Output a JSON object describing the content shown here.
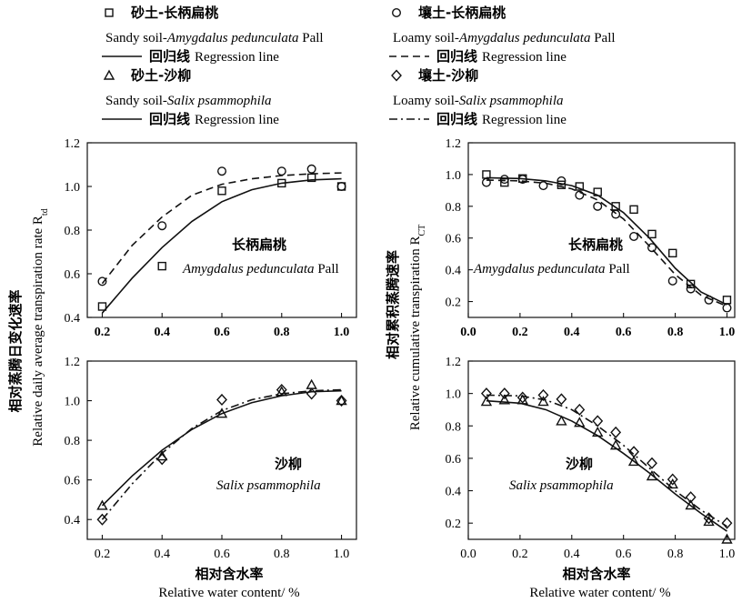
{
  "legend": {
    "items": [
      {
        "marker": "square",
        "cn": "砂土-长柄扁桃",
        "en_prefix": "Sandy soil-",
        "en_species": "Amygdalus pedunculata",
        "en_suffix": " Pall",
        "line": "solid",
        "line_cn": "回归线",
        "line_en": "Regression line"
      },
      {
        "marker": "circle",
        "cn": "壤土-长柄扁桃",
        "en_prefix": "Loamy soil-",
        "en_species": "Amygdalus pedunculata",
        "en_suffix": " Pall",
        "line": "dashed",
        "line_cn": "回归线",
        "line_en": "Regression line"
      },
      {
        "marker": "triangle",
        "cn": "砂土-沙柳",
        "en_prefix": "Sandy soil-",
        "en_species": "Salix psammophila",
        "en_suffix": "",
        "line": "solid",
        "line_cn": "回归线",
        "line_en": "Regression line"
      },
      {
        "marker": "diamond",
        "cn": "壤土-沙柳",
        "en_prefix": "Loamy soil-",
        "en_species": "Salix psammophila",
        "en_suffix": "",
        "line": "dashdot",
        "line_cn": "回归线",
        "line_en": "Regression line"
      }
    ]
  },
  "axes_text": {
    "left_ylabel_cn": "相对蒸腾日变化速率",
    "left_ylabel_en": "Relative daily average transpiration rate R",
    "left_ylabel_sub": "td",
    "right_ylabel_cn": "相对累积蒸腾速率",
    "right_ylabel_en": "Relative cumulative transpiration R",
    "right_ylabel_sub": "CT",
    "xlabel_cn": "相对含水率",
    "xlabel_en": "Relative water content/ %"
  },
  "chart_data": [
    {
      "type": "scatter",
      "panel": "top-left",
      "xlim": [
        0.15,
        1.05
      ],
      "ylim": [
        0.4,
        1.2
      ],
      "xticks": [
        "0.2",
        "0.4",
        "0.6",
        "0.8",
        "1.0"
      ],
      "yticks": [
        "0.4",
        "0.6",
        "0.8",
        "1.0",
        "1.2"
      ],
      "xtick_bold": true,
      "annotation_cn": "长柄扁桃",
      "annotation_en": "Amygdalus pedunculata",
      "annotation_en_suffix": " Pall",
      "series": [
        {
          "marker": "square",
          "x": [
            0.2,
            0.4,
            0.6,
            0.8,
            0.9,
            1.0
          ],
          "y": [
            0.45,
            0.635,
            0.98,
            1.015,
            1.04,
            1.0
          ]
        },
        {
          "marker": "circle",
          "x": [
            0.2,
            0.4,
            0.6,
            0.8,
            0.9,
            1.0
          ],
          "y": [
            0.565,
            0.82,
            1.07,
            1.07,
            1.08,
            1.0
          ]
        }
      ],
      "curves": [
        {
          "line": "solid",
          "x": [
            0.2,
            0.3,
            0.4,
            0.5,
            0.6,
            0.7,
            0.8,
            0.9,
            1.0
          ],
          "y": [
            0.42,
            0.58,
            0.72,
            0.84,
            0.93,
            0.985,
            1.015,
            1.03,
            1.035
          ]
        },
        {
          "line": "dashed",
          "x": [
            0.2,
            0.3,
            0.4,
            0.5,
            0.6,
            0.7,
            0.8,
            0.9,
            1.0
          ],
          "y": [
            0.555,
            0.73,
            0.86,
            0.96,
            1.01,
            1.035,
            1.05,
            1.058,
            1.062
          ]
        }
      ]
    },
    {
      "type": "scatter",
      "panel": "top-right",
      "xlim": [
        0.0,
        1.03
      ],
      "ylim": [
        0.1,
        1.2
      ],
      "xticks": [
        "0.0",
        "0.2",
        "0.4",
        "0.6",
        "0.8",
        "1.0"
      ],
      "yticks": [
        "0.2",
        "0.4",
        "0.6",
        "0.8",
        "1.0",
        "1.2"
      ],
      "xtick_bold": true,
      "annotation_cn": "长柄扁桃",
      "annotation_en": "Amygdalus pedunculata",
      "annotation_en_suffix": " Pall",
      "series": [
        {
          "marker": "square",
          "x": [
            0.07,
            0.14,
            0.21,
            0.36,
            0.43,
            0.5,
            0.57,
            0.64,
            0.71,
            0.79,
            0.86,
            1.0
          ],
          "y": [
            1.0,
            0.95,
            0.975,
            0.935,
            0.925,
            0.89,
            0.8,
            0.78,
            0.625,
            0.505,
            0.31,
            0.21
          ]
        },
        {
          "marker": "circle",
          "x": [
            0.07,
            0.14,
            0.21,
            0.29,
            0.36,
            0.43,
            0.5,
            0.57,
            0.64,
            0.71,
            0.79,
            0.86,
            0.93,
            1.0
          ],
          "y": [
            0.95,
            0.97,
            0.97,
            0.93,
            0.96,
            0.87,
            0.8,
            0.75,
            0.61,
            0.54,
            0.33,
            0.28,
            0.21,
            0.16
          ]
        }
      ],
      "curves": [
        {
          "line": "solid",
          "x": [
            0.07,
            0.2,
            0.3,
            0.4,
            0.5,
            0.6,
            0.7,
            0.8,
            0.9,
            1.0
          ],
          "y": [
            0.98,
            0.975,
            0.96,
            0.93,
            0.87,
            0.76,
            0.6,
            0.41,
            0.26,
            0.18
          ]
        },
        {
          "line": "dashed",
          "x": [
            0.07,
            0.2,
            0.3,
            0.4,
            0.5,
            0.6,
            0.7,
            0.8,
            0.9,
            1.0
          ],
          "y": [
            0.965,
            0.96,
            0.945,
            0.91,
            0.84,
            0.72,
            0.55,
            0.37,
            0.24,
            0.17
          ]
        }
      ]
    },
    {
      "type": "scatter",
      "panel": "bottom-left",
      "xlim": [
        0.15,
        1.05
      ],
      "ylim": [
        0.3,
        1.2
      ],
      "xticks": [
        "0.2",
        "0.4",
        "0.6",
        "0.8",
        "1.0"
      ],
      "yticks": [
        "0.4",
        "0.6",
        "0.8",
        "1.0",
        "1.2"
      ],
      "xtick_bold": false,
      "annotation_cn": "沙柳",
      "annotation_en": "Salix psammophila",
      "annotation_en_suffix": "",
      "series": [
        {
          "marker": "triangle",
          "x": [
            0.2,
            0.4,
            0.6,
            0.8,
            0.9,
            1.0
          ],
          "y": [
            0.47,
            0.72,
            0.935,
            1.045,
            1.08,
            1.0
          ]
        },
        {
          "marker": "diamond",
          "x": [
            0.2,
            0.4,
            0.6,
            0.8,
            0.9,
            1.0
          ],
          "y": [
            0.4,
            0.705,
            1.005,
            1.055,
            1.035,
            1.0
          ]
        }
      ],
      "curves": [
        {
          "line": "solid",
          "x": [
            0.2,
            0.3,
            0.4,
            0.5,
            0.6,
            0.7,
            0.8,
            0.9,
            1.0
          ],
          "y": [
            0.47,
            0.62,
            0.75,
            0.855,
            0.935,
            0.99,
            1.025,
            1.045,
            1.05
          ]
        },
        {
          "line": "dashdot",
          "x": [
            0.2,
            0.3,
            0.4,
            0.5,
            0.6,
            0.7,
            0.8,
            0.9,
            1.0
          ],
          "y": [
            0.4,
            0.58,
            0.735,
            0.86,
            0.95,
            1.005,
            1.035,
            1.05,
            1.055
          ]
        }
      ]
    },
    {
      "type": "scatter",
      "panel": "bottom-right",
      "xlim": [
        0.0,
        1.03
      ],
      "ylim": [
        0.1,
        1.2
      ],
      "xticks": [
        "0.0",
        "0.2",
        "0.4",
        "0.6",
        "0.8",
        "1.0"
      ],
      "yticks": [
        "0.2",
        "0.4",
        "0.6",
        "0.8",
        "1.0",
        "1.2"
      ],
      "xtick_bold": false,
      "annotation_cn": "沙柳",
      "annotation_en": "Salix psammophila",
      "annotation_en_suffix": "",
      "series": [
        {
          "marker": "triangle",
          "x": [
            0.07,
            0.14,
            0.21,
            0.29,
            0.36,
            0.43,
            0.5,
            0.57,
            0.64,
            0.71,
            0.79,
            0.86,
            0.93,
            1.0
          ],
          "y": [
            0.95,
            0.96,
            0.96,
            0.95,
            0.83,
            0.82,
            0.76,
            0.68,
            0.58,
            0.49,
            0.44,
            0.31,
            0.21,
            0.1
          ]
        },
        {
          "marker": "diamond",
          "x": [
            0.07,
            0.14,
            0.21,
            0.29,
            0.36,
            0.43,
            0.5,
            0.57,
            0.64,
            0.71,
            0.79,
            0.86,
            0.93,
            1.0
          ],
          "y": [
            1.0,
            1.0,
            0.975,
            0.99,
            0.965,
            0.9,
            0.83,
            0.76,
            0.64,
            0.57,
            0.47,
            0.36,
            0.23,
            0.2
          ]
        }
      ],
      "curves": [
        {
          "line": "solid",
          "x": [
            0.07,
            0.2,
            0.3,
            0.4,
            0.5,
            0.6,
            0.7,
            0.8,
            0.9,
            1.0
          ],
          "y": [
            0.955,
            0.94,
            0.9,
            0.83,
            0.74,
            0.63,
            0.51,
            0.38,
            0.26,
            0.15
          ]
        },
        {
          "line": "dashdot",
          "x": [
            0.07,
            0.2,
            0.3,
            0.4,
            0.5,
            0.6,
            0.7,
            0.8,
            0.9,
            1.0
          ],
          "y": [
            0.99,
            0.985,
            0.96,
            0.9,
            0.8,
            0.68,
            0.54,
            0.4,
            0.28,
            0.18
          ]
        }
      ]
    }
  ]
}
